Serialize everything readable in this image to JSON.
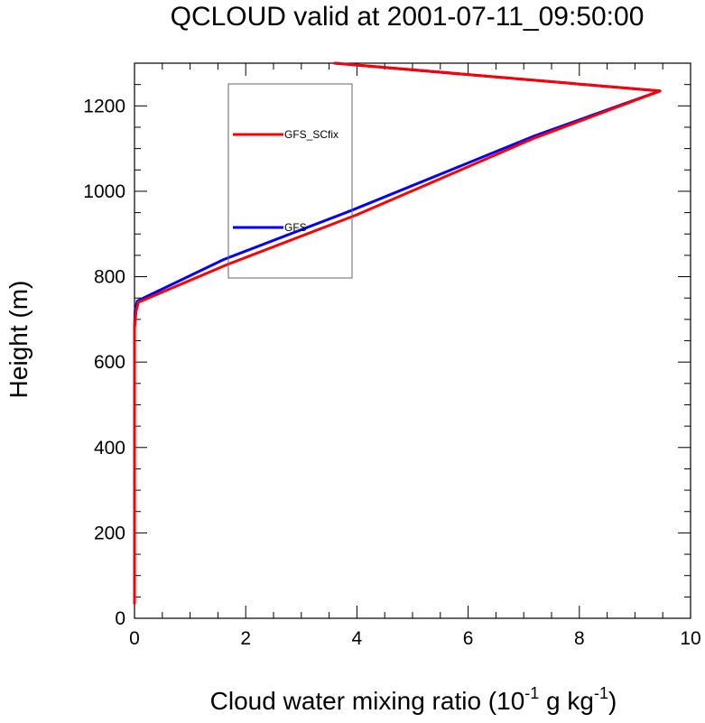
{
  "chart_data": {
    "type": "line",
    "title": "QCLOUD valid at 2001-07-11_09:50:00",
    "xlabel": {
      "main": "Cloud water mixing ratio (10",
      "sup1": "-1",
      "mid": " g kg",
      "sup2": "-1",
      "end": ")"
    },
    "ylabel": "Height (m)",
    "xlim": [
      0,
      10
    ],
    "ylim": [
      0,
      1300
    ],
    "xticks": [
      0,
      2,
      4,
      6,
      8,
      10
    ],
    "yticks": [
      0,
      200,
      400,
      600,
      800,
      1000,
      1200
    ],
    "grid": false,
    "legend_position": "upper-left inside plot",
    "series": [
      {
        "name": "GFS",
        "color": "#0000ff",
        "x": [
          0.0,
          0.0,
          0.0,
          0.0,
          0.0,
          0.01,
          0.05,
          1.6,
          3.9,
          7.2,
          9.45,
          3.6
        ],
        "y": [
          35,
          200,
          400,
          600,
          680,
          720,
          743,
          840,
          955,
          1130,
          1235,
          1300
        ]
      },
      {
        "name": "GFS_SCfix",
        "color": "#ff0000",
        "x": [
          0.0,
          0.0,
          0.0,
          0.0,
          0.0,
          0.03,
          0.07,
          1.7,
          4.0,
          7.2,
          9.45,
          3.6
        ],
        "y": [
          35,
          200,
          400,
          600,
          680,
          720,
          740,
          830,
          945,
          1125,
          1235,
          1300
        ]
      }
    ]
  }
}
